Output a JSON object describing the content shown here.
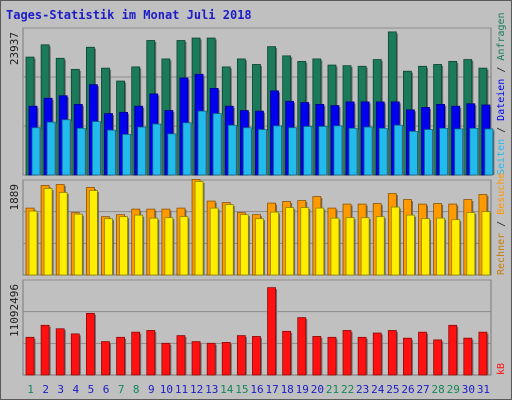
{
  "title": "Tages-Statistik im Monat Juli 2018",
  "chart_data": {
    "type": "bar",
    "categories": [
      "1",
      "2",
      "3",
      "4",
      "5",
      "6",
      "7",
      "8",
      "9",
      "10",
      "11",
      "12",
      "13",
      "14",
      "15",
      "16",
      "17",
      "18",
      "19",
      "20",
      "21",
      "22",
      "23",
      "24",
      "25",
      "26",
      "27",
      "28",
      "29",
      "30",
      "31"
    ],
    "weekend_days": [
      "1",
      "7",
      "8",
      "14",
      "15",
      "21",
      "22",
      "28",
      "29"
    ],
    "panels": [
      {
        "max_label": "23937",
        "max": 23937,
        "series": [
          {
            "name": "Anfragen",
            "color": "#1a7a5a",
            "values": [
              19200,
              21200,
              19000,
              17200,
              20800,
              17400,
              15300,
              17600,
              21900,
              18900,
              21900,
              22300,
              22300,
              17600,
              18900,
              18000,
              20900,
              19400,
              18500,
              18900,
              17900,
              17800,
              17700,
              18800,
              23300,
              16900,
              17700,
              18000,
              18500,
              18800,
              17400
            ]
          },
          {
            "name": "Dateien",
            "color": "#0000ee",
            "values": [
              11200,
              12500,
              12900,
              11500,
              14700,
              10000,
              10200,
              11200,
              13200,
              10500,
              15800,
              16400,
              14100,
              11200,
              10500,
              10400,
              13700,
              12000,
              11800,
              11500,
              11300,
              11900,
              11900,
              11900,
              11900,
              10600,
              11000,
              11500,
              11200,
              11600,
              11400
            ]
          },
          {
            "name": "Seiten",
            "color": "#22bbee",
            "values": [
              7700,
              8600,
              9000,
              7600,
              8700,
              7300,
              6600,
              7800,
              8300,
              6700,
              8500,
              10400,
              10000,
              8100,
              7700,
              7400,
              8000,
              7700,
              7900,
              7900,
              8000,
              7600,
              7800,
              7600,
              8100,
              7100,
              7400,
              7600,
              7500,
              7600,
              7500
            ]
          }
        ]
      },
      {
        "max_label": "1889",
        "max": 1889,
        "series": [
          {
            "name": "Besuche",
            "color": "#ff9900",
            "values": [
              1330,
              1780,
              1800,
              1240,
              1740,
              1160,
              1200,
              1310,
              1310,
              1310,
              1330,
              1900,
              1470,
              1440,
              1240,
              1200,
              1430,
              1460,
              1480,
              1560,
              1330,
              1410,
              1410,
              1420,
              1620,
              1500,
              1410,
              1420,
              1410,
              1500,
              1600
            ]
          },
          {
            "name": "Rechner",
            "color": "#ffee00",
            "values": [
              1270,
              1720,
              1640,
              1210,
              1680,
              1120,
              1160,
              1190,
              1130,
              1140,
              1160,
              1860,
              1330,
              1400,
              1200,
              1120,
              1250,
              1340,
              1340,
              1330,
              1130,
              1140,
              1140,
              1160,
              1350,
              1190,
              1120,
              1130,
              1100,
              1240,
              1260
            ]
          }
        ]
      },
      {
        "max_label": "11092496",
        "max": 11092496,
        "series": [
          {
            "name": "kB",
            "color": "#ff1111",
            "values": [
              4400000,
              5800000,
              5400000,
              4800000,
              7200000,
              3900000,
              4400000,
              5000000,
              5200000,
              3700000,
              4600000,
              3900000,
              3700000,
              3800000,
              4600000,
              4500000,
              10200000,
              5100000,
              6700000,
              4500000,
              4400000,
              5200000,
              4400000,
              4900000,
              5200000,
              4300000,
              5000000,
              4100000,
              5800000,
              4300000,
              5000000
            ]
          }
        ]
      }
    ],
    "legend": [
      {
        "name": "Anfragen",
        "color": "#1a7a5a"
      },
      {
        "name": "Dateien",
        "color": "#0000ee"
      },
      {
        "name": "Seiten",
        "color": "#22bbee"
      },
      {
        "name": "Besuche",
        "color": "#ff9900"
      },
      {
        "name": "Rechner",
        "color": "#ffee00"
      },
      {
        "name": "kB",
        "color": "#ff1111"
      }
    ],
    "grid": true,
    "legend_placement": "right-vertical"
  },
  "colors": {
    "title": "#1c1cc8",
    "background": "#c0c0c0",
    "weekday_label": "#1c1cc8",
    "weekend_label": "#13875a"
  }
}
